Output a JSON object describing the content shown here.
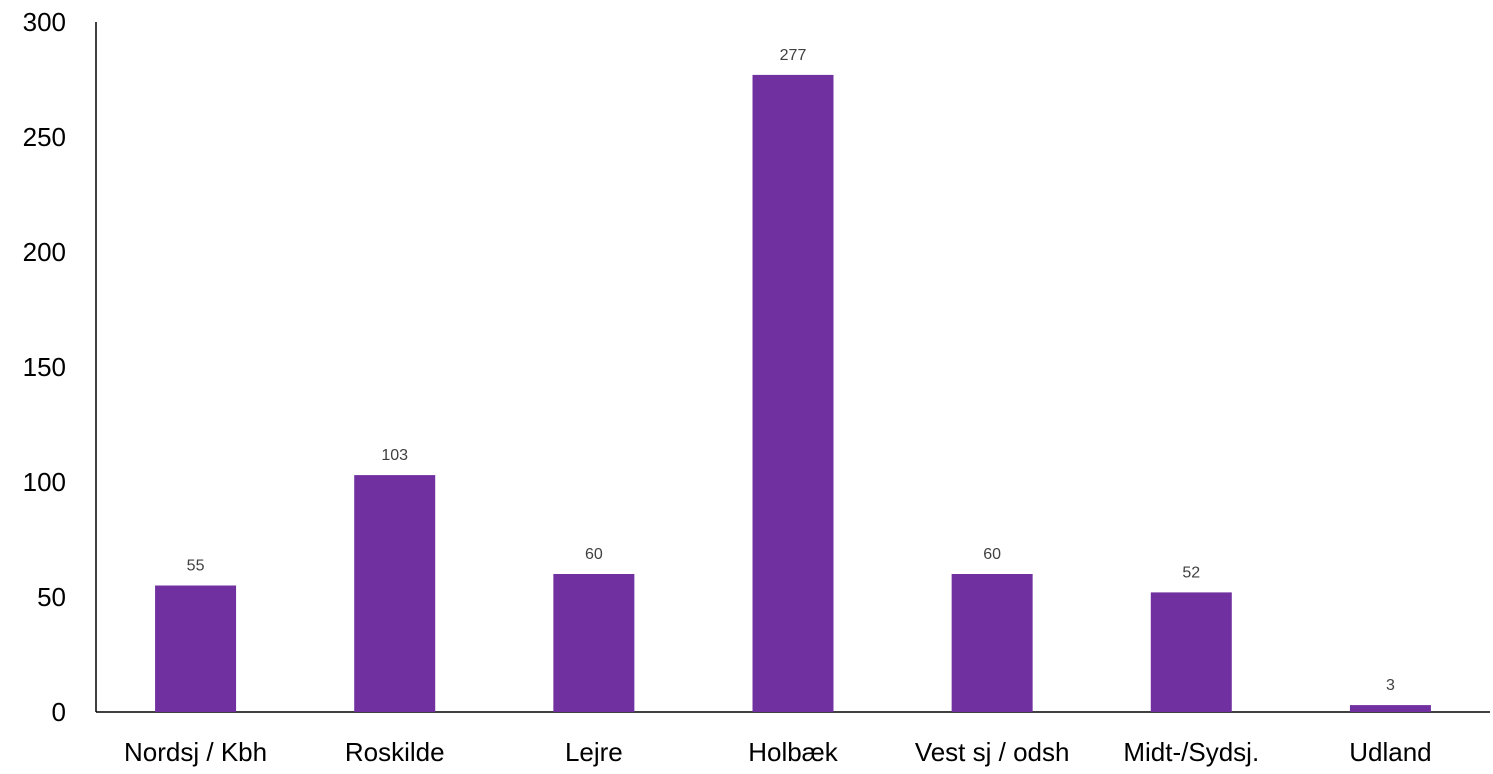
{
  "chart_data": {
    "type": "bar",
    "title": "",
    "xlabel": "",
    "ylabel": "",
    "categories": [
      "Nordsj / Kbh",
      "Roskilde",
      "Lejre",
      "Holbæk",
      "Vest sj / odsh",
      "Midt-/Sydsj.",
      "Udland"
    ],
    "values": [
      55,
      103,
      60,
      277,
      60,
      52,
      3
    ],
    "data_labels": [
      "55",
      "103",
      "60",
      "277",
      "60",
      "52",
      "3"
    ],
    "ylim": [
      0,
      300
    ],
    "yticks": [
      0,
      50,
      100,
      150,
      200,
      250,
      300
    ],
    "ytick_labels": [
      "0",
      "50",
      "100",
      "150",
      "200",
      "250",
      "300"
    ],
    "grid": false,
    "legend": "none",
    "colors": {
      "bar": "#7030A0",
      "axis": "#000000",
      "data_label": "#404040"
    }
  }
}
